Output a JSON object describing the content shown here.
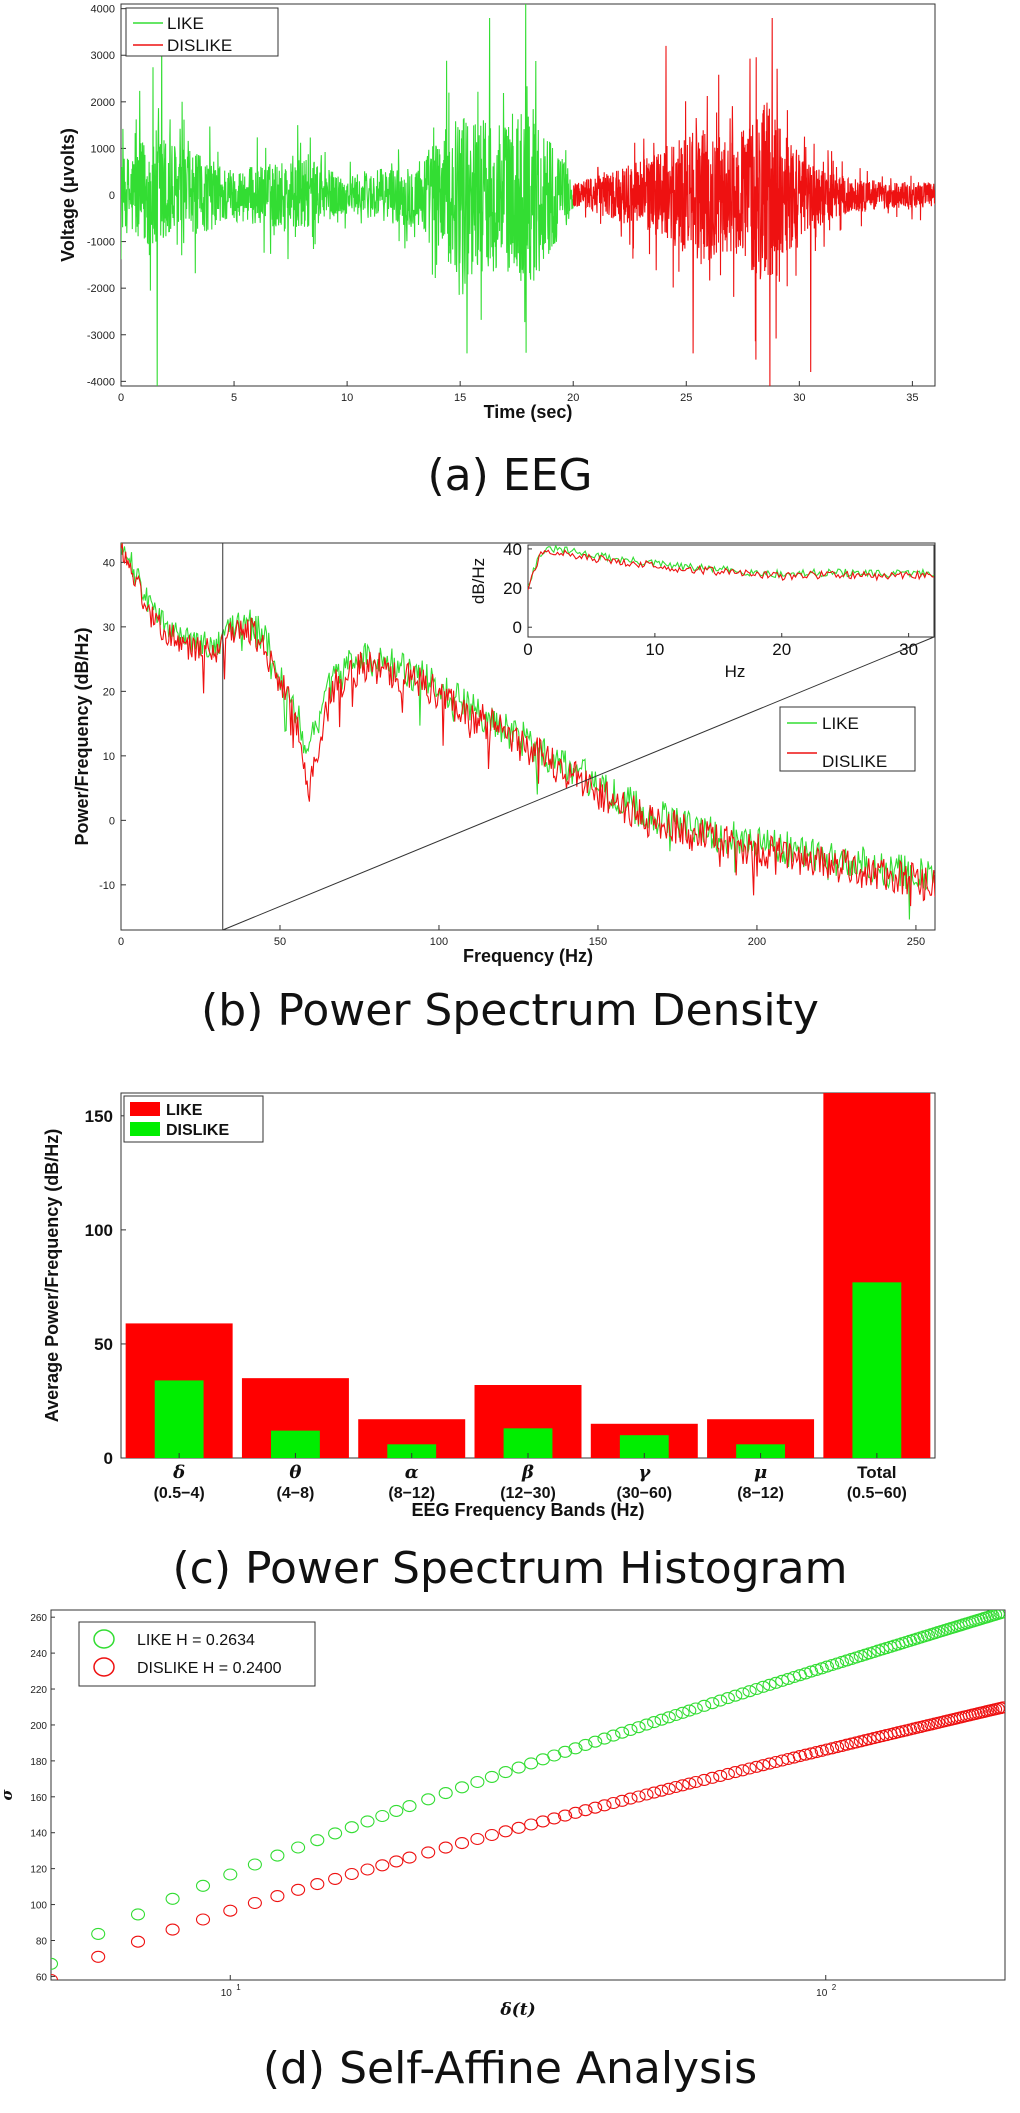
{
  "colors": {
    "like": "#33dd33",
    "dislike": "#ee1111",
    "hist_like": "#ff0000",
    "hist_dislike": "#00ee00"
  },
  "chart_data": [
    {
      "id": "a",
      "type": "line",
      "caption": "(a) EEG",
      "xlabel": "Time (sec)",
      "ylabel": "Voltage (μvolts)",
      "xlim": [
        0,
        36
      ],
      "ylim": [
        -4100,
        4100
      ],
      "xticks": [
        "0",
        "5",
        "10",
        "15",
        "20",
        "25",
        "30",
        "35"
      ],
      "yticks": [
        "-4000",
        "-3000",
        "-2000",
        "-1000",
        "0",
        "1000",
        "2000",
        "3000",
        "4000"
      ],
      "legend": [
        "LIKE",
        "DISLIKE"
      ],
      "legend_position": "top-left",
      "series": [
        {
          "name": "LIKE",
          "x_range": [
            0,
            20
          ],
          "amplitude_profile": [
            [
              0,
              900
            ],
            [
              1.5,
              1800
            ],
            [
              3,
              1200
            ],
            [
              5,
              700
            ],
            [
              8,
              1000
            ],
            [
              10,
              500
            ],
            [
              13,
              900
            ],
            [
              15,
              2200
            ],
            [
              17,
              2000
            ],
            [
              18,
              2600
            ],
            [
              20,
              500
            ]
          ],
          "peaks": [
            [
              1.6,
              -4100
            ],
            [
              1.8,
              3500
            ],
            [
              17.9,
              4100
            ],
            [
              15.3,
              -3400
            ],
            [
              16.3,
              3800
            ]
          ]
        },
        {
          "name": "DISLIKE",
          "x_range": [
            20,
            36
          ],
          "amplitude_profile": [
            [
              20,
              300
            ],
            [
              22,
              700
            ],
            [
              24,
              1200
            ],
            [
              25.5,
              1900
            ],
            [
              27,
              1500
            ],
            [
              28.5,
              2500
            ],
            [
              30,
              1100
            ],
            [
              32,
              500
            ],
            [
              34,
              350
            ],
            [
              36,
              350
            ]
          ],
          "peaks": [
            [
              28.7,
              -4100
            ],
            [
              28.8,
              3800
            ],
            [
              30.5,
              -3800
            ],
            [
              24.1,
              3200
            ],
            [
              25.3,
              -3400
            ]
          ]
        }
      ]
    },
    {
      "id": "b",
      "type": "line",
      "caption": "(b) Power Spectrum Density",
      "xlabel": "Frequency (Hz)",
      "ylabel": "Power/Frequency (dB/Hz)",
      "xlim": [
        0,
        256
      ],
      "ylim": [
        -17,
        43
      ],
      "xticks": [
        "0",
        "50",
        "100",
        "150",
        "200",
        "250"
      ],
      "yticks": [
        "-10",
        "0",
        "10",
        "20",
        "30",
        "40"
      ],
      "legend": [
        "LIKE",
        "DISLIKE"
      ],
      "legend_position": "right",
      "series": [
        {
          "name": "LIKE",
          "points": [
            [
              0,
              42
            ],
            [
              3,
              40
            ],
            [
              10,
              32
            ],
            [
              20,
              28
            ],
            [
              30,
              27
            ],
            [
              35,
              30
            ],
            [
              40,
              31
            ],
            [
              45,
              28
            ],
            [
              50,
              23
            ],
            [
              55,
              17
            ],
            [
              58,
              11
            ],
            [
              62,
              15
            ],
            [
              66,
              21
            ],
            [
              72,
              24
            ],
            [
              78,
              25
            ],
            [
              85,
              24
            ],
            [
              95,
              22
            ],
            [
              105,
              19
            ],
            [
              115,
              16
            ],
            [
              125,
              13
            ],
            [
              135,
              10
            ],
            [
              145,
              7
            ],
            [
              155,
              4
            ],
            [
              165,
              1
            ],
            [
              175,
              0
            ],
            [
              185,
              -2
            ],
            [
              195,
              -3
            ],
            [
              205,
              -4
            ],
            [
              215,
              -5
            ],
            [
              225,
              -6
            ],
            [
              235,
              -7
            ],
            [
              245,
              -8
            ],
            [
              256,
              -9
            ]
          ]
        },
        {
          "name": "DISLIKE",
          "points": [
            [
              0,
              42
            ],
            [
              3,
              39
            ],
            [
              10,
              31
            ],
            [
              20,
              27
            ],
            [
              30,
              26
            ],
            [
              35,
              29
            ],
            [
              40,
              30
            ],
            [
              45,
              27
            ],
            [
              50,
              22
            ],
            [
              55,
              15
            ],
            [
              59,
              5
            ],
            [
              63,
              13
            ],
            [
              66,
              20
            ],
            [
              72,
              23
            ],
            [
              78,
              24
            ],
            [
              85,
              23
            ],
            [
              95,
              21
            ],
            [
              105,
              18
            ],
            [
              115,
              15
            ],
            [
              125,
              12
            ],
            [
              135,
              9
            ],
            [
              145,
              6
            ],
            [
              155,
              3
            ],
            [
              165,
              0
            ],
            [
              175,
              -1
            ],
            [
              185,
              -3
            ],
            [
              195,
              -4
            ],
            [
              205,
              -5
            ],
            [
              215,
              -6
            ],
            [
              225,
              -7
            ],
            [
              235,
              -8
            ],
            [
              245,
              -9
            ],
            [
              256,
              -10
            ]
          ]
        }
      ],
      "inset": {
        "xlabel": "Hz",
        "ylabel": "dB/Hz",
        "xlim": [
          0,
          32
        ],
        "ylim": [
          -5,
          42
        ],
        "xticks": [
          "0",
          "10",
          "20",
          "30"
        ],
        "yticks": [
          "0",
          "20",
          "40"
        ],
        "series": [
          {
            "name": "LIKE",
            "points": [
              [
                0,
                22
              ],
              [
                1,
                38
              ],
              [
                2,
                40
              ],
              [
                4,
                38
              ],
              [
                8,
                34
              ],
              [
                12,
                31
              ],
              [
                16,
                29
              ],
              [
                20,
                27
              ],
              [
                24,
                28
              ],
              [
                28,
                27
              ],
              [
                32,
                28
              ]
            ]
          },
          {
            "name": "DISLIKE",
            "points": [
              [
                0,
                20
              ],
              [
                1,
                37
              ],
              [
                2,
                39
              ],
              [
                4,
                36
              ],
              [
                8,
                33
              ],
              [
                12,
                30
              ],
              [
                16,
                28
              ],
              [
                20,
                26
              ],
              [
                24,
                27
              ],
              [
                28,
                26
              ],
              [
                32,
                27
              ]
            ]
          }
        ]
      }
    },
    {
      "id": "c",
      "type": "bar",
      "caption": "(c) Power Spectrum Histogram",
      "xlabel": "EEG Frequency Bands (Hz)",
      "ylabel": "Average Power/Frequency (dB/Hz)",
      "ylim": [
        0,
        160
      ],
      "yticks": [
        "0",
        "50",
        "100",
        "150"
      ],
      "categories": [
        {
          "symbol": "δ",
          "range": "(0.5−4)"
        },
        {
          "symbol": "θ",
          "range": "(4−8)"
        },
        {
          "symbol": "α",
          "range": "(8−12)"
        },
        {
          "symbol": "β",
          "range": "(12−30)"
        },
        {
          "symbol": "γ",
          "range": "(30−60)"
        },
        {
          "symbol": "μ",
          "range": "(8−12)"
        },
        {
          "symbol": "Total",
          "range": "(0.5−60)"
        }
      ],
      "legend": [
        "LIKE",
        "DISLIKE"
      ],
      "legend_position": "top-left",
      "series": [
        {
          "name": "LIKE",
          "values": [
            59,
            35,
            17,
            32,
            15,
            17,
            160
          ]
        },
        {
          "name": "DISLIKE",
          "values": [
            34,
            12,
            6,
            13,
            10,
            6,
            77
          ]
        }
      ]
    },
    {
      "id": "d",
      "type": "scatter",
      "caption": "(d) Self-Affine Analysis",
      "xlabel": "δ(t)",
      "ylabel": "σ",
      "xscale": "log",
      "xlim": [
        5,
        200
      ],
      "ylim": [
        58,
        264
      ],
      "yticks": [
        "60",
        "80",
        "100",
        "120",
        "140",
        "160",
        "180",
        "200",
        "220",
        "240",
        "260"
      ],
      "xticks_log": [
        {
          "value": 10,
          "label": "10",
          "sup": "1"
        },
        {
          "value": 100,
          "label": "10",
          "sup": "2"
        }
      ],
      "legend": [
        "LIKE H = 0.2634",
        "DISLIKE H = 0.2400"
      ],
      "legend_position": "top-left",
      "series": [
        {
          "name": "LIKE",
          "hurst": 0.2634,
          "start": [
            5,
            67
          ],
          "end": [
            200,
            263
          ]
        },
        {
          "name": "DISLIKE",
          "hurst": 0.24,
          "start": [
            5,
            58
          ],
          "end": [
            200,
            210
          ]
        }
      ]
    }
  ]
}
